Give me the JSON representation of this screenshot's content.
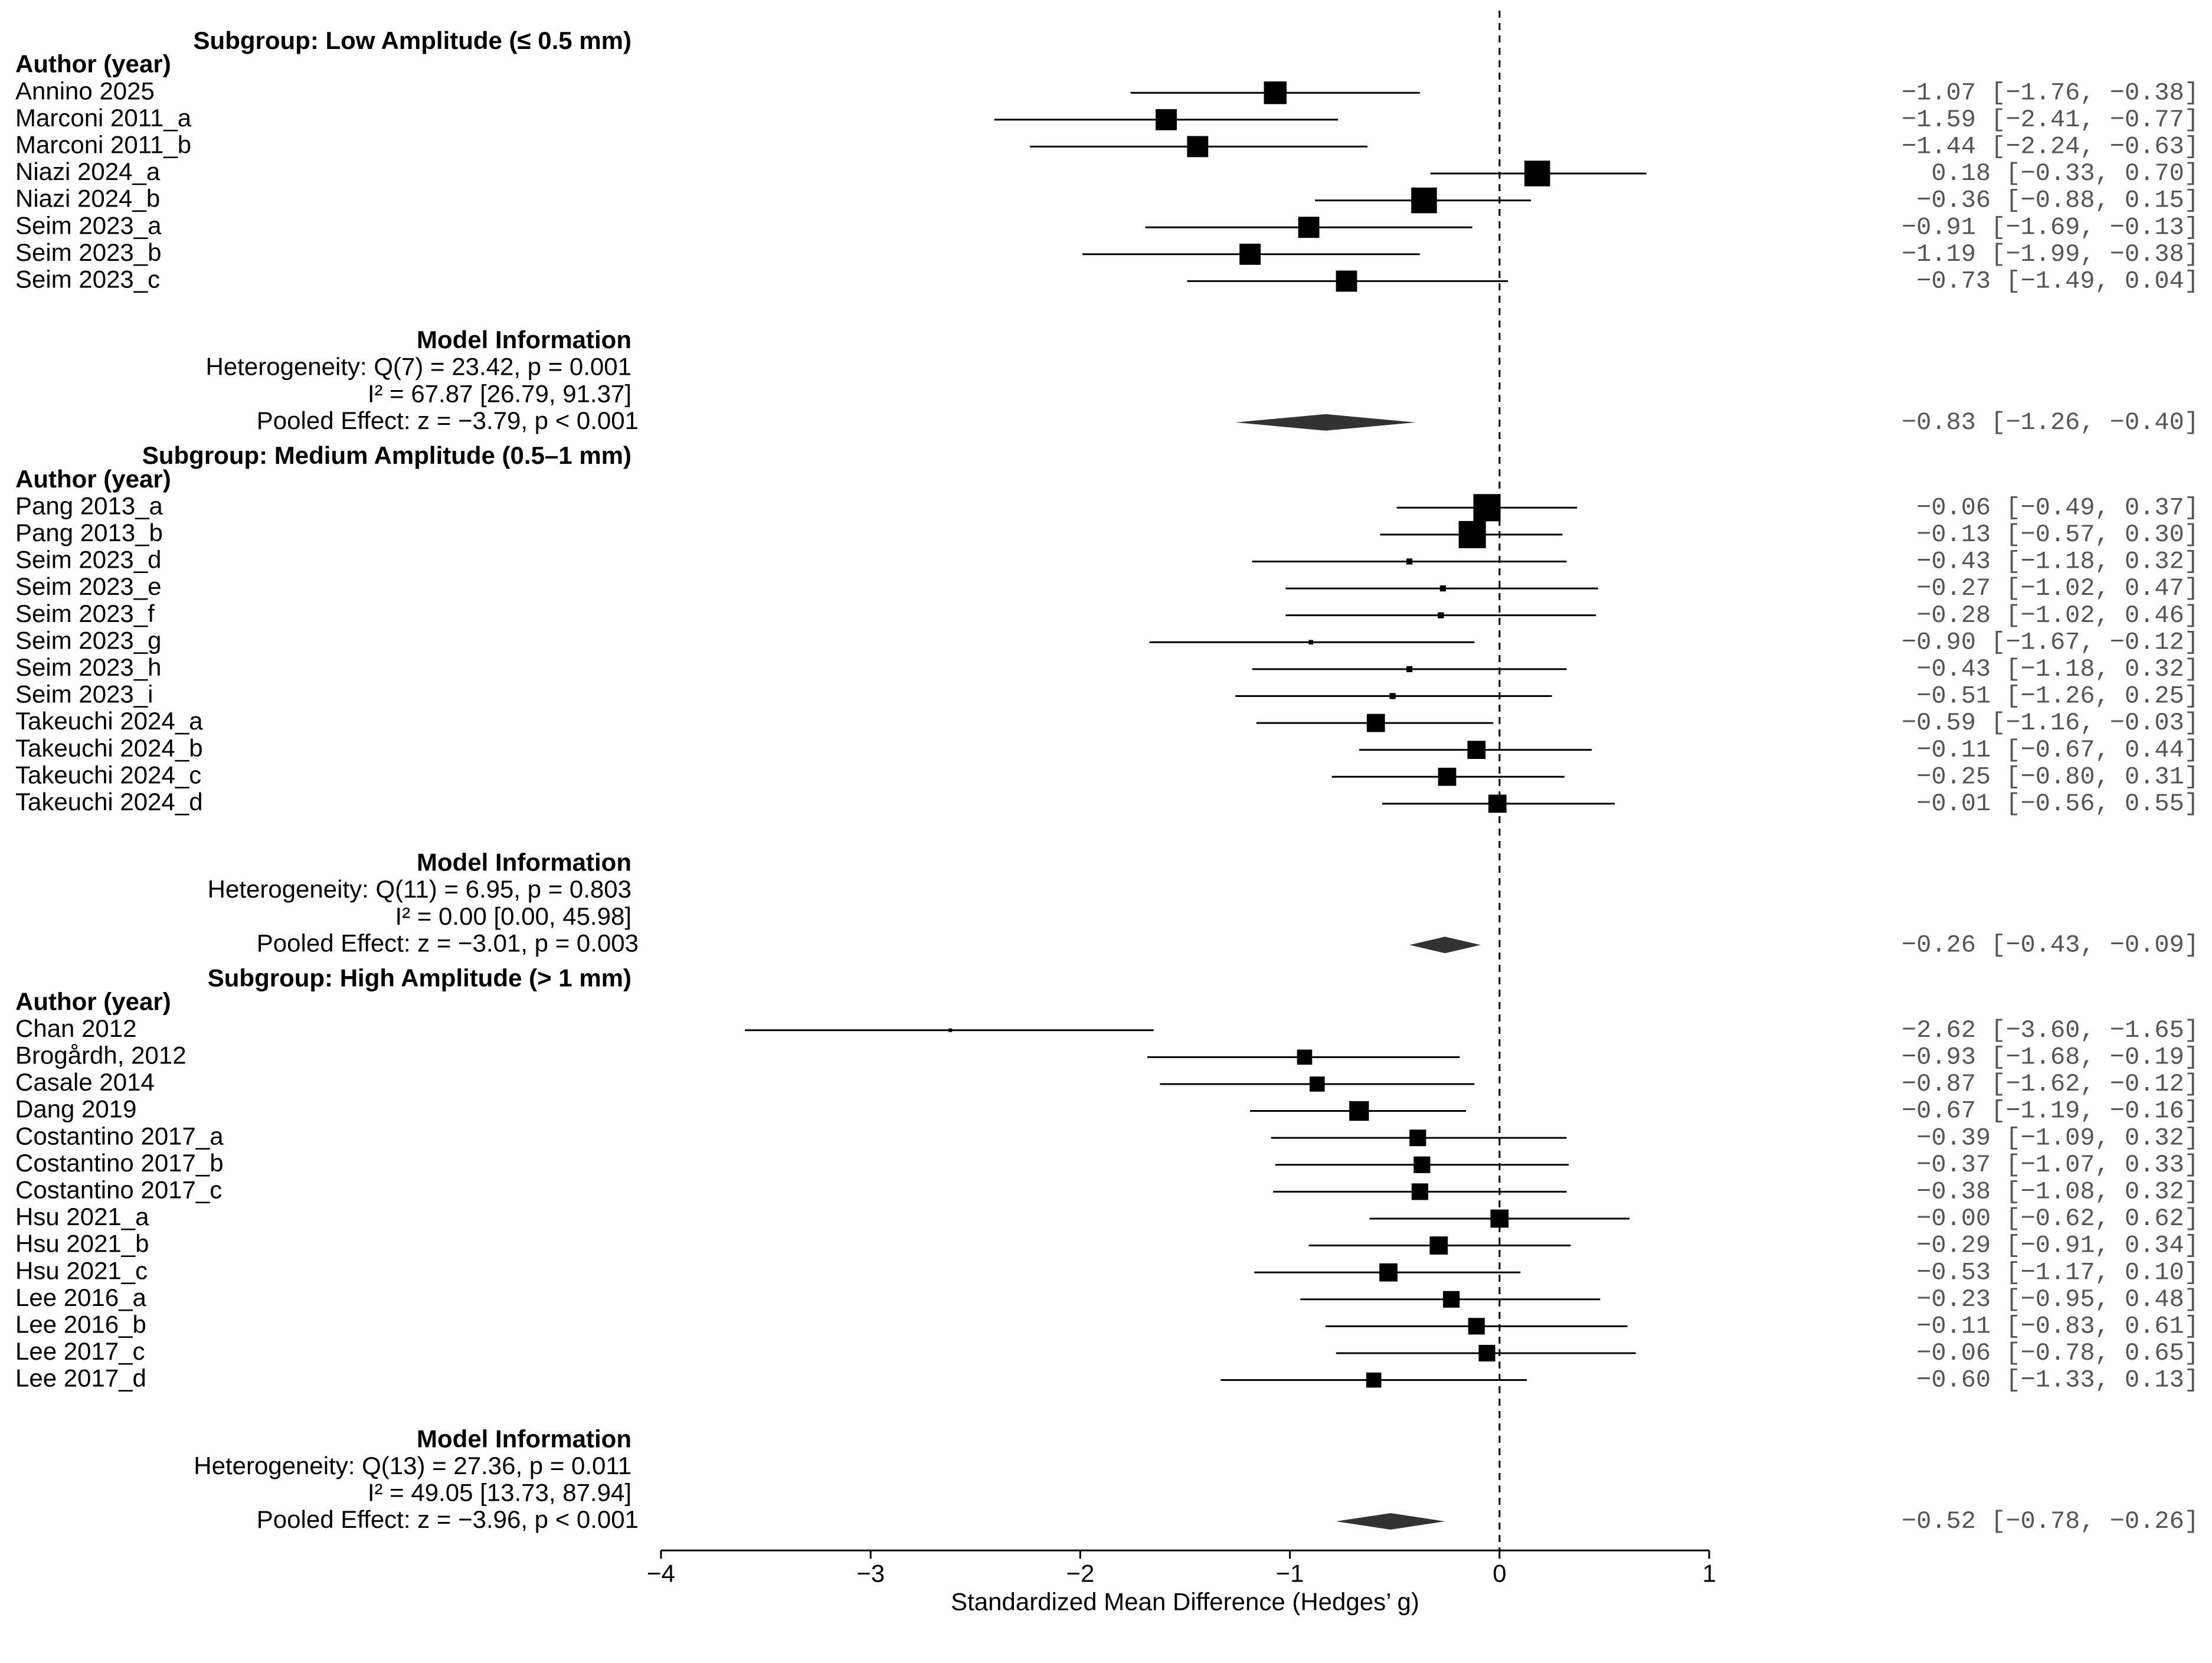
{
  "chart_data": {
    "type": "forest",
    "xlabel": "Standardized Mean Difference (Hedges’ g)",
    "xlim": [
      -4,
      1
    ],
    "xticks": [
      -4,
      -3,
      -2,
      -1,
      0,
      1
    ],
    "xtick_labels": [
      "−4",
      "−3",
      "−2",
      "−1",
      "0",
      "1"
    ],
    "reference_line": 0,
    "column_header": "Author (year)",
    "model_info_title": "Model Information",
    "subgroups": [
      {
        "title": "Subgroup: Low Amplitude (≤ 0.5 mm)",
        "studies": [
          {
            "label": "Annino 2025",
            "est": -1.07,
            "lo": -1.76,
            "hi": -0.38,
            "weight": 3,
            "ci_text": "−1.07 [−1.76, −0.38]"
          },
          {
            "label": "Marconi 2011_a",
            "est": -1.59,
            "lo": -2.41,
            "hi": -0.77,
            "weight": 2.8,
            "ci_text": "−1.59 [−2.41, −0.77]"
          },
          {
            "label": "Marconi 2011_b",
            "est": -1.44,
            "lo": -2.24,
            "hi": -0.63,
            "weight": 2.8,
            "ci_text": "−1.44 [−2.24, −0.63]"
          },
          {
            "label": "Niazi 2024_a",
            "est": 0.18,
            "lo": -0.33,
            "hi": 0.7,
            "weight": 3.4,
            "ci_text": "0.18 [−0.33, 0.70]"
          },
          {
            "label": "Niazi 2024_b",
            "est": -0.36,
            "lo": -0.88,
            "hi": 0.15,
            "weight": 3.4,
            "ci_text": "−0.36 [−0.88, 0.15]"
          },
          {
            "label": "Seim 2023_a",
            "est": -0.91,
            "lo": -1.69,
            "hi": -0.13,
            "weight": 2.8,
            "ci_text": "−0.91 [−1.69, −0.13]"
          },
          {
            "label": "Seim 2023_b",
            "est": -1.19,
            "lo": -1.99,
            "hi": -0.38,
            "weight": 2.8,
            "ci_text": "−1.19 [−1.99, −0.38]"
          },
          {
            "label": "Seim 2023_c",
            "est": -0.73,
            "lo": -1.49,
            "hi": 0.04,
            "weight": 2.8,
            "ci_text": "−0.73 [−1.49, 0.04]"
          }
        ],
        "heterogeneity": "Heterogeneity: Q(7) = 23.42, p = 0.001",
        "i2": "I² = 67.87 [26.79, 91.37]",
        "pooled_text": "Pooled Effect: z = −3.79, p < 0.001",
        "pooled": {
          "est": -0.83,
          "lo": -1.26,
          "hi": -0.4,
          "ci_text": "−0.83 [−1.26, −0.40]"
        }
      },
      {
        "title": "Subgroup: Medium Amplitude (0.5–1 mm)",
        "studies": [
          {
            "label": "Pang 2013_a",
            "est": -0.06,
            "lo": -0.49,
            "hi": 0.37,
            "weight": 3.6,
            "ci_text": "−0.06 [−0.49, 0.37]"
          },
          {
            "label": "Pang 2013_b",
            "est": -0.13,
            "lo": -0.57,
            "hi": 0.3,
            "weight": 3.6,
            "ci_text": "−0.13 [−0.57, 0.30]"
          },
          {
            "label": "Seim 2023_d",
            "est": -0.43,
            "lo": -1.18,
            "hi": 0.32,
            "weight": 0.8,
            "ci_text": "−0.43 [−1.18, 0.32]"
          },
          {
            "label": "Seim 2023_e",
            "est": -0.27,
            "lo": -1.02,
            "hi": 0.47,
            "weight": 0.8,
            "ci_text": "−0.27 [−1.02, 0.47]"
          },
          {
            "label": "Seim 2023_f",
            "est": -0.28,
            "lo": -1.02,
            "hi": 0.46,
            "weight": 0.8,
            "ci_text": "−0.28 [−1.02, 0.46]"
          },
          {
            "label": "Seim 2023_g",
            "est": -0.9,
            "lo": -1.67,
            "hi": -0.12,
            "weight": 0.6,
            "ci_text": "−0.90 [−1.67, −0.12]"
          },
          {
            "label": "Seim 2023_h",
            "est": -0.43,
            "lo": -1.18,
            "hi": 0.32,
            "weight": 0.8,
            "ci_text": "−0.43 [−1.18, 0.32]"
          },
          {
            "label": "Seim 2023_i",
            "est": -0.51,
            "lo": -1.26,
            "hi": 0.25,
            "weight": 0.8,
            "ci_text": "−0.51 [−1.26, 0.25]"
          },
          {
            "label": "Takeuchi 2024_a",
            "est": -0.59,
            "lo": -1.16,
            "hi": -0.03,
            "weight": 2.4,
            "ci_text": "−0.59 [−1.16, −0.03]"
          },
          {
            "label": "Takeuchi 2024_b",
            "est": -0.11,
            "lo": -0.67,
            "hi": 0.44,
            "weight": 2.4,
            "ci_text": "−0.11 [−0.67, 0.44]"
          },
          {
            "label": "Takeuchi 2024_c",
            "est": -0.25,
            "lo": -0.8,
            "hi": 0.31,
            "weight": 2.4,
            "ci_text": "−0.25 [−0.80, 0.31]"
          },
          {
            "label": "Takeuchi 2024_d",
            "est": -0.01,
            "lo": -0.56,
            "hi": 0.55,
            "weight": 2.4,
            "ci_text": "−0.01 [−0.56, 0.55]"
          }
        ],
        "heterogeneity": "Heterogeneity: Q(11) = 6.95, p = 0.803",
        "i2": "I² = 0.00 [0.00, 45.98]",
        "pooled_text": "Pooled Effect: z = −3.01, p = 0.003",
        "pooled": {
          "est": -0.26,
          "lo": -0.43,
          "hi": -0.09,
          "ci_text": "−0.26 [−0.43, −0.09]"
        }
      },
      {
        "title": "Subgroup: High Amplitude (> 1 mm)",
        "studies": [
          {
            "label": "Chan 2012",
            "est": -2.62,
            "lo": -3.6,
            "hi": -1.65,
            "weight": 0.4,
            "ci_text": "−2.62 [−3.60, −1.65]"
          },
          {
            "label": "Brogårdh, 2012",
            "est": -0.93,
            "lo": -1.68,
            "hi": -0.19,
            "weight": 2.0,
            "ci_text": "−0.93 [−1.68, −0.19]"
          },
          {
            "label": "Casale 2014",
            "est": -0.87,
            "lo": -1.62,
            "hi": -0.12,
            "weight": 2.0,
            "ci_text": "−0.87 [−1.62, −0.12]"
          },
          {
            "label": "Dang 2019",
            "est": -0.67,
            "lo": -1.19,
            "hi": -0.16,
            "weight": 2.6,
            "ci_text": "−0.67 [−1.19, −0.16]"
          },
          {
            "label": "Costantino 2017_a",
            "est": -0.39,
            "lo": -1.09,
            "hi": 0.32,
            "weight": 2.2,
            "ci_text": "−0.39 [−1.09, 0.32]"
          },
          {
            "label": "Costantino 2017_b",
            "est": -0.37,
            "lo": -1.07,
            "hi": 0.33,
            "weight": 2.2,
            "ci_text": "−0.37 [−1.07, 0.33]"
          },
          {
            "label": "Costantino 2017_c",
            "est": -0.38,
            "lo": -1.08,
            "hi": 0.32,
            "weight": 2.2,
            "ci_text": "−0.38 [−1.08, 0.32]"
          },
          {
            "label": "Hsu 2021_a",
            "est": -0.0,
            "lo": -0.62,
            "hi": 0.62,
            "weight": 2.4,
            "ci_text": "−0.00 [−0.62, 0.62]"
          },
          {
            "label": "Hsu 2021_b",
            "est": -0.29,
            "lo": -0.91,
            "hi": 0.34,
            "weight": 2.4,
            "ci_text": "−0.29 [−0.91, 0.34]"
          },
          {
            "label": "Hsu 2021_c",
            "est": -0.53,
            "lo": -1.17,
            "hi": 0.1,
            "weight": 2.4,
            "ci_text": "−0.53 [−1.17, 0.10]"
          },
          {
            "label": "Lee 2016_a",
            "est": -0.23,
            "lo": -0.95,
            "hi": 0.48,
            "weight": 2.2,
            "ci_text": "−0.23 [−0.95, 0.48]"
          },
          {
            "label": "Lee 2016_b",
            "est": -0.11,
            "lo": -0.83,
            "hi": 0.61,
            "weight": 2.2,
            "ci_text": "−0.11 [−0.83, 0.61]"
          },
          {
            "label": "Lee 2017_c",
            "est": -0.06,
            "lo": -0.78,
            "hi": 0.65,
            "weight": 2.2,
            "ci_text": "−0.06 [−0.78, 0.65]"
          },
          {
            "label": "Lee 2017_d",
            "est": -0.6,
            "lo": -1.33,
            "hi": 0.13,
            "weight": 2.0,
            "ci_text": "−0.60 [−1.33, 0.13]"
          }
        ],
        "heterogeneity": "Heterogeneity: Q(13) = 27.36, p = 0.011",
        "i2": "I² = 49.05 [13.73, 87.94]",
        "pooled_text": "Pooled Effect: z = −3.96, p < 0.001",
        "pooled": {
          "est": -0.52,
          "lo": -0.78,
          "hi": -0.26,
          "ci_text": "−0.52 [−0.78, −0.26]"
        }
      }
    ]
  }
}
